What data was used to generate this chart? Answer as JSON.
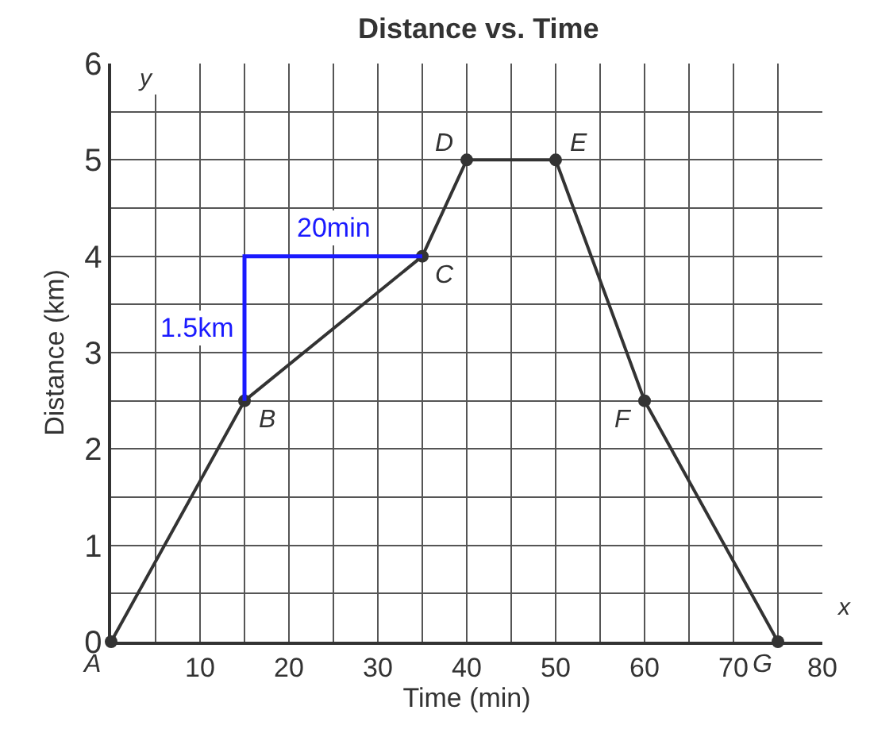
{
  "chart_data": {
    "type": "line",
    "title": "Distance vs. Time",
    "xlabel": "Time (min)",
    "ylabel": "Distance (km)",
    "x": [
      0,
      15,
      35,
      40,
      50,
      60,
      75
    ],
    "series": [
      {
        "color": "#333333",
        "values": [
          0,
          2.5,
          4,
          5,
          5,
          2.5,
          0
        ]
      }
    ],
    "xlim": [
      0,
      80
    ],
    "ylim": [
      0,
      6
    ],
    "xticks": [
      {
        "value": 5,
        "label": null
      },
      10,
      {
        "value": 15,
        "label": null
      },
      20,
      {
        "value": 25,
        "label": null
      },
      30,
      {
        "value": 35,
        "label": null
      },
      40,
      {
        "value": 45,
        "label": null
      },
      50,
      {
        "value": 55,
        "label": null
      },
      60,
      {
        "value": 65,
        "label": null
      },
      70,
      {
        "value": 75,
        "label": null
      },
      80
    ],
    "yticks": [
      0,
      {
        "value": 0.5,
        "label": null
      },
      1,
      {
        "value": 1.5,
        "label": null
      },
      2,
      {
        "value": 2.5,
        "label": null
      },
      3,
      {
        "value": 3.5,
        "label": null
      },
      4,
      {
        "value": 4.5,
        "label": null
      },
      5,
      {
        "value": 5.5,
        "label": null
      },
      6
    ],
    "grid": true,
    "marker": "circle",
    "line_style": "solid",
    "annotations": [
      {
        "text": "A",
        "x": 0,
        "y": 0
      },
      {
        "text": "B",
        "x": 15,
        "y": 2.5
      },
      {
        "text": "C",
        "x": 35,
        "y": 4
      },
      {
        "text": "D",
        "x": 40,
        "y": 5
      },
      {
        "text": "E",
        "x": 50,
        "y": 5
      },
      {
        "text": "F",
        "x": 60,
        "y": 2.5
      },
      {
        "text": "G",
        "x": 75,
        "y": 0
      },
      "20min",
      "1.5km",
      "x",
      "y"
    ]
  }
}
